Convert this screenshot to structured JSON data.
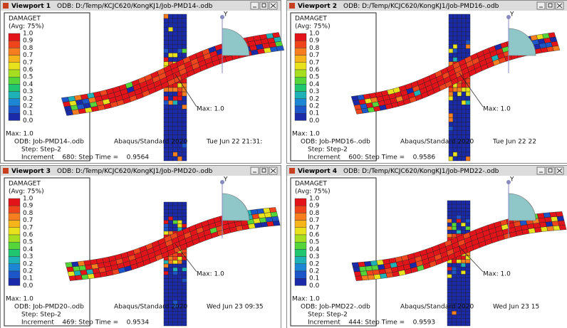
{
  "legend": {
    "title": "DAMAGET",
    "subtitle": "(Avg: 75%)",
    "levels": [
      "1.0",
      "0.9",
      "0.8",
      "0.7",
      "0.7",
      "0.6",
      "0.5",
      "0.4",
      "0.3",
      "0.2",
      "0.2",
      "0.1",
      "0.0"
    ]
  },
  "viewports": [
    {
      "name": "Viewport 1",
      "odb_path": "ODB: D:/Temp/KCJC620/KongKJ1/Job-PMD14-.odb",
      "triad_label": "Y",
      "legend_max": "Max: 1.0",
      "mesh_max": "Max: 1.0",
      "info": {
        "odb": "ODB: Job-PMD14-.odb",
        "solver": "Abaqus/Standard 2020",
        "date": "Tue Jun 22 21:31:",
        "step": "Step: Step-2",
        "increment": "Increment    680: Step Time =    0.9564"
      }
    },
    {
      "name": "Viewport 2",
      "odb_path": "ODB: D:/Temp/KCJC620/KongKJ1/Job-PMD16-.odb",
      "triad_label": "Y",
      "legend_max": "Max: 1.0",
      "mesh_max": "Max: 1.0",
      "info": {
        "odb": "ODB: Job-PMD16-.odb",
        "solver": "Abaqus/Standard 2020",
        "date": "Tue Jun 22 22",
        "step": "Step: Step-2",
        "increment": "Increment    600: Step Time =    0.9586"
      }
    },
    {
      "name": "Viewport 3",
      "odb_path": "ODB: D:/Temp/KCJC620/KongKJ1/Job-PMD20-.odb",
      "triad_label": "Y",
      "legend_max": "Max: 1.0",
      "mesh_max": "Max: 1.0",
      "info": {
        "odb": "ODB: Job-PMD20-.odb",
        "solver": "Abaqus/Standard 2020",
        "date": "Wed Jun 23 09:35",
        "step": "Step: Step-2",
        "increment": "Increment    469: Step Time =    0.9534"
      }
    },
    {
      "name": "Viewport 4",
      "odb_path": "ODB: D:/Temp/KCJC620/KongKJ1/Job-PMD22-.odb",
      "triad_label": "Y",
      "legend_max": "Max: 1.0",
      "mesh_max": "Max: 1.0",
      "info": {
        "odb": "ODB: Job-PMD22-.odb",
        "solver": "Abaqus/Standard 2020",
        "date": "Wed Jun 23 15",
        "step": "Step: Step-2",
        "increment": "Increment    444: Step Time =    0.9593"
      }
    }
  ]
}
